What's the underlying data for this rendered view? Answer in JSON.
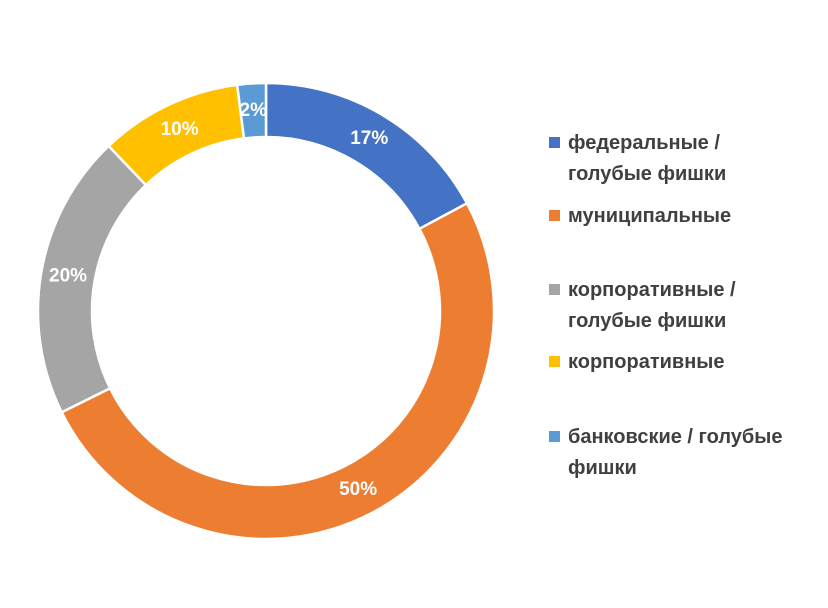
{
  "chart_data": {
    "type": "pie",
    "title": "",
    "series": [
      {
        "name": "",
        "values": [
          17,
          50,
          20,
          10,
          2
        ]
      }
    ],
    "categories": [
      "федеральные / голубые фишки",
      "муниципальные",
      "корпоративные / голубые фишки",
      "корпоративные",
      "банковские / голубые фишки"
    ],
    "data_labels": [
      "17%",
      "50%",
      "20%",
      "10%",
      "2%"
    ],
    "legend": {
      "position": "right",
      "entries": [
        {
          "lines": [
            "федеральные /",
            "голубые фишки"
          ],
          "color": "#4472C4"
        },
        {
          "lines": [
            "муниципальные"
          ],
          "color": "#ED7D31"
        },
        {
          "lines": [
            "корпоративные  /",
            "голубые фишки"
          ],
          "color": "#A5A5A5"
        },
        {
          "lines": [
            "корпоративные"
          ],
          "color": "#FFC000"
        },
        {
          "lines": [
            "банковские  / голубые",
            "фишки"
          ],
          "color": "#5B9BD5"
        }
      ]
    },
    "colors": [
      "#4472C4",
      "#ED7D31",
      "#A5A5A5",
      "#FFC000",
      "#5B9BD5"
    ],
    "donut": true
  }
}
